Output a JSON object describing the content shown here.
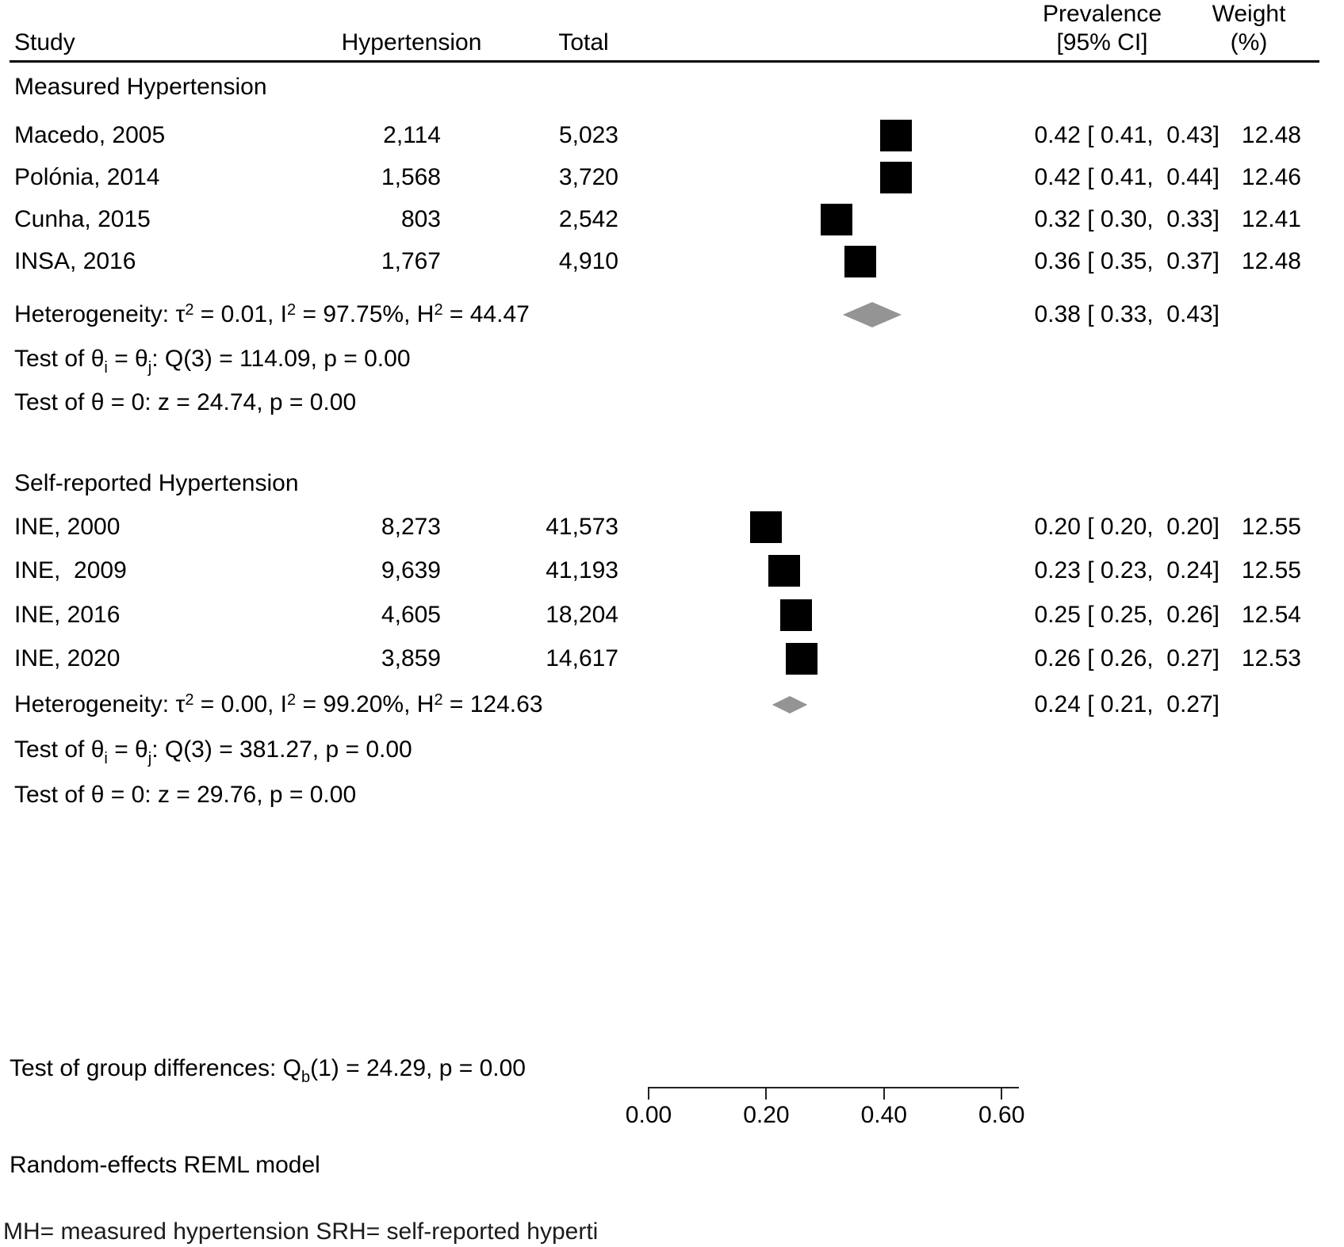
{
  "chart_data": {
    "type": "forest",
    "title": "",
    "x_axis": {
      "tick_values": [
        0.0,
        0.2,
        0.4,
        0.6
      ],
      "tick_labels": [
        "0.00",
        "0.20",
        "0.40",
        "0.60"
      ],
      "range": [
        0.0,
        0.63
      ],
      "grid": false
    },
    "columns": {
      "study": "Study",
      "hypertension": "Hypertension",
      "total": "Total",
      "prevalence_line1": "Prevalence",
      "prevalence_line2": "[95% CI]",
      "weight_line1": "Weight",
      "weight_line2": "(%)"
    },
    "groups": [
      {
        "label": "Measured Hypertension",
        "studies": [
          {
            "study": "Macedo, 2005",
            "hypertension": "2,114",
            "total": "5,023",
            "estimate": 0.42,
            "ci_lower": 0.41,
            "ci_upper": 0.43,
            "ci_label": "0.42 [ 0.41,  0.43]",
            "weight_pct": 12.48,
            "weight_label": "12.48"
          },
          {
            "study": "Polónia, 2014",
            "hypertension": "1,568",
            "total": "3,720",
            "estimate": 0.42,
            "ci_lower": 0.41,
            "ci_upper": 0.44,
            "ci_label": "0.42 [ 0.41,  0.44]",
            "weight_pct": 12.46,
            "weight_label": "12.46"
          },
          {
            "study": "Cunha, 2015",
            "hypertension": "803",
            "total": "2,542",
            "estimate": 0.32,
            "ci_lower": 0.3,
            "ci_upper": 0.33,
            "ci_label": "0.32 [ 0.30,  0.33]",
            "weight_pct": 12.41,
            "weight_label": "12.41"
          },
          {
            "study": "INSA, 2016",
            "hypertension": "1,767",
            "total": "4,910",
            "estimate": 0.36,
            "ci_lower": 0.35,
            "ci_upper": 0.37,
            "ci_label": "0.36 [ 0.35,  0.37]",
            "weight_pct": 12.48,
            "weight_label": "12.48"
          }
        ],
        "overall": {
          "estimate": 0.38,
          "ci_lower": 0.33,
          "ci_upper": 0.43,
          "ci_label": "0.38 [ 0.33,  0.43]"
        },
        "heterogeneity_rich": [
          {
            "t": "txt",
            "v": "Heterogeneity: τ"
          },
          {
            "t": "sup",
            "v": "2"
          },
          {
            "t": "txt",
            "v": " = 0.01, I"
          },
          {
            "t": "sup",
            "v": "2"
          },
          {
            "t": "txt",
            "v": " = 97.75%, H"
          },
          {
            "t": "sup",
            "v": "2"
          },
          {
            "t": "txt",
            "v": " = 44.47"
          }
        ],
        "test_q_rich": [
          {
            "t": "txt",
            "v": "Test of θ"
          },
          {
            "t": "sub",
            "v": "i"
          },
          {
            "t": "txt",
            "v": " = θ"
          },
          {
            "t": "sub",
            "v": "j"
          },
          {
            "t": "txt",
            "v": ": Q(3) = 114.09, p = 0.00"
          }
        ],
        "test_z": "Test of θ = 0: z = 24.74, p = 0.00"
      },
      {
        "label": "Self-reported Hypertension",
        "studies": [
          {
            "study": "INE, 2000",
            "hypertension": "8,273",
            "total": "41,573",
            "estimate": 0.2,
            "ci_lower": 0.2,
            "ci_upper": 0.2,
            "ci_label": "0.20 [ 0.20,  0.20]",
            "weight_pct": 12.55,
            "weight_label": "12.55"
          },
          {
            "study": "INE,  2009",
            "hypertension": "9,639",
            "total": "41,193",
            "estimate": 0.23,
            "ci_lower": 0.23,
            "ci_upper": 0.24,
            "ci_label": "0.23 [ 0.23,  0.24]",
            "weight_pct": 12.55,
            "weight_label": "12.55"
          },
          {
            "study": "INE, 2016",
            "hypertension": "4,605",
            "total": "18,204",
            "estimate": 0.25,
            "ci_lower": 0.25,
            "ci_upper": 0.26,
            "ci_label": "0.25 [ 0.25,  0.26]",
            "weight_pct": 12.54,
            "weight_label": "12.54"
          },
          {
            "study": "INE, 2020",
            "hypertension": "3,859",
            "total": "14,617",
            "estimate": 0.26,
            "ci_lower": 0.26,
            "ci_upper": 0.27,
            "ci_label": "0.26 [ 0.26,  0.27]",
            "weight_pct": 12.53,
            "weight_label": "12.53"
          }
        ],
        "overall": {
          "estimate": 0.24,
          "ci_lower": 0.21,
          "ci_upper": 0.27,
          "ci_label": "0.24 [ 0.21,  0.27]"
        },
        "heterogeneity_rich": [
          {
            "t": "txt",
            "v": "Heterogeneity: τ"
          },
          {
            "t": "sup",
            "v": "2"
          },
          {
            "t": "txt",
            "v": " = 0.00, I"
          },
          {
            "t": "sup",
            "v": "2"
          },
          {
            "t": "txt",
            "v": " = 99.20%, H"
          },
          {
            "t": "sup",
            "v": "2"
          },
          {
            "t": "txt",
            "v": " = 124.63"
          }
        ],
        "test_q_rich": [
          {
            "t": "txt",
            "v": "Test of θ"
          },
          {
            "t": "sub",
            "v": "i"
          },
          {
            "t": "txt",
            "v": " = θ"
          },
          {
            "t": "sub",
            "v": "j"
          },
          {
            "t": "txt",
            "v": ": Q(3) = 381.27, p = 0.00"
          }
        ],
        "test_z": "Test of θ = 0: z = 29.76, p = 0.00"
      }
    ],
    "group_difference_rich": [
      {
        "t": "txt",
        "v": "Test of group differences: Q"
      },
      {
        "t": "sub",
        "v": "b"
      },
      {
        "t": "txt",
        "v": "(1) = 24.29, p = 0.00"
      }
    ],
    "model_note": "Random-effects REML model",
    "abbrev_note": "MH= measured hypertension SRH= self-reported hyperti",
    "marker_colors": {
      "study_square": "#000000",
      "overall_diamond": "#949494"
    }
  }
}
